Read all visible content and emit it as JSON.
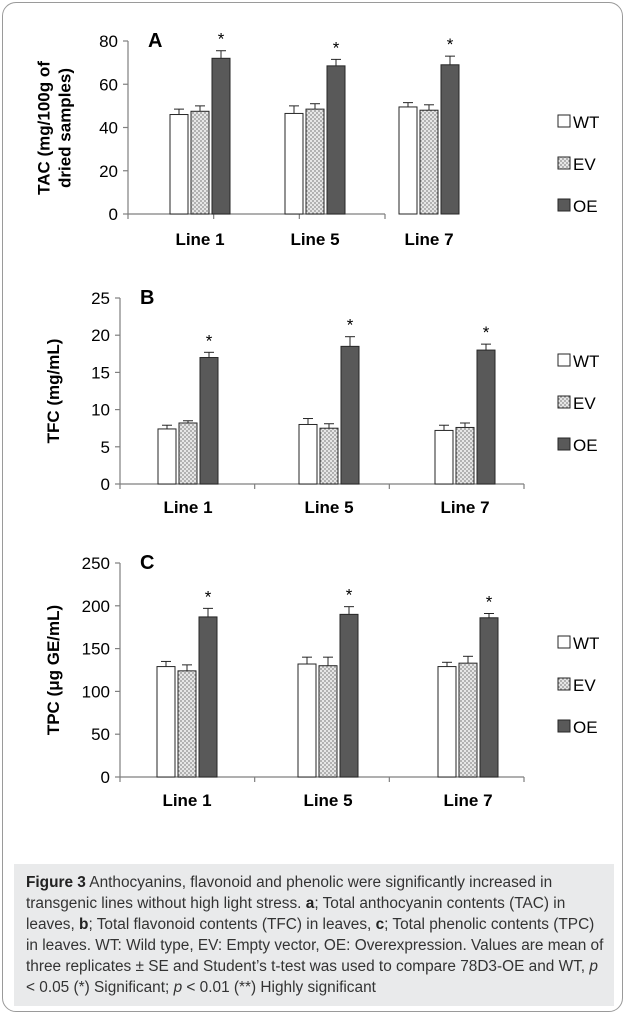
{
  "chart_data": [
    {
      "type": "bar",
      "panel_label": "A",
      "categories": [
        "Line 1",
        "Line 5",
        "Line 7"
      ],
      "ylabel_lines": [
        "TAC (mg/100g of",
        "dried samples)"
      ],
      "ylim": [
        0,
        80
      ],
      "yticks": [
        0,
        20,
        40,
        60,
        80
      ],
      "series": [
        {
          "name": "WT",
          "values": [
            46,
            46.5,
            49.5
          ],
          "errors": [
            2.5,
            3.5,
            2
          ]
        },
        {
          "name": "EV",
          "values": [
            47.5,
            48.5,
            48
          ],
          "errors": [
            2.5,
            2.5,
            2.5
          ]
        },
        {
          "name": "OE",
          "values": [
            72,
            68.5,
            69
          ],
          "errors": [
            3.5,
            3,
            4
          ]
        }
      ],
      "significance": [
        "*",
        "*",
        "*"
      ]
    },
    {
      "type": "bar",
      "panel_label": "B",
      "categories": [
        "Line 1",
        "Line 5",
        "Line 7"
      ],
      "ylabel_lines": [
        "TFC (mg/mL)"
      ],
      "ylim": [
        0,
        25
      ],
      "yticks": [
        0,
        5,
        10,
        15,
        20,
        25
      ],
      "series": [
        {
          "name": "WT",
          "values": [
            7.4,
            8.0,
            7.2
          ],
          "errors": [
            0.5,
            0.8,
            0.7
          ]
        },
        {
          "name": "EV",
          "values": [
            8.2,
            7.5,
            7.6
          ],
          "errors": [
            0.3,
            0.6,
            0.6
          ]
        },
        {
          "name": "OE",
          "values": [
            17.0,
            18.5,
            18.0
          ],
          "errors": [
            0.7,
            1.3,
            0.8
          ]
        }
      ],
      "significance": [
        "*",
        "*",
        "*"
      ]
    },
    {
      "type": "bar",
      "panel_label": "C",
      "categories": [
        "Line 1",
        "Line 5",
        "Line 7"
      ],
      "ylabel_lines": [
        "TPC (μg GE/mL)"
      ],
      "ylim": [
        0,
        250
      ],
      "yticks": [
        0,
        50,
        100,
        150,
        200,
        250
      ],
      "series": [
        {
          "name": "WT",
          "values": [
            129,
            132,
            129
          ],
          "errors": [
            6,
            8,
            5
          ]
        },
        {
          "name": "EV",
          "values": [
            124,
            130,
            133
          ],
          "errors": [
            7,
            10,
            8
          ]
        },
        {
          "name": "OE",
          "values": [
            187,
            190,
            186
          ],
          "errors": [
            10,
            9,
            5
          ]
        }
      ],
      "significance": [
        "*",
        "*",
        "*"
      ]
    }
  ],
  "legend": {
    "WT": "WT",
    "EV": "EV",
    "OE": "OE"
  },
  "colors": {
    "WT": "#ffffff",
    "EV": "#c9c9c9",
    "OE": "#595959",
    "axis": "#7f7f7f",
    "text": "#000000"
  },
  "caption": {
    "figure_label": "Figure 3",
    "title": " Anthocyanins, flavonoid and phenolic were significantly increased in transgenic lines without high light stress. ",
    "a_label": "a",
    "a_text": "; Total anthocyanin contents (TAC) in leaves, ",
    "b_label": "b",
    "b_text": "; Total flavonoid contents (TFC) in leaves, ",
    "c_label": "c",
    "c_text": "; Total phenolic contents (TPC) in leaves. WT: Wild type, EV: Empty vector, OE: Overexpression. Values are mean of three replicates ± SE and Student’s t-test was used to compare 78D3-OE and WT, ",
    "p1": "p",
    "t1": " < 0.05 (*) Significant; ",
    "p2": "p",
    "t2": " < 0.01 (**) Highly significant"
  }
}
